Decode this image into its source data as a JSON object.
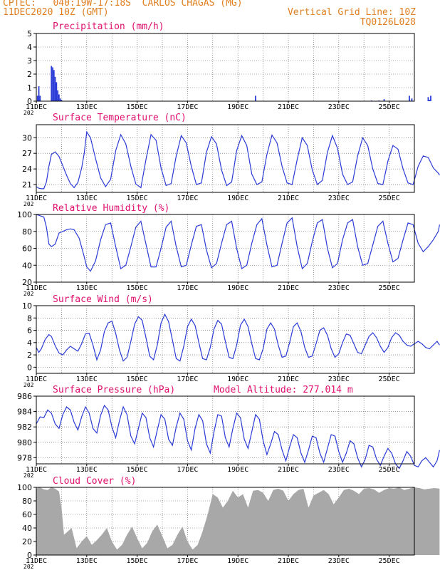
{
  "header": {
    "line1_left": "CPTEC:   040:19W-17:18S  CARLOS CHAGAS (MG)",
    "line2_left": "11DEC2020 10Z (GMT)",
    "line1_right": "Vertical Grid Line: 10Z",
    "line2_right": "TQ0126L028",
    "model_altitude": "Model Altitude: 277.014 m"
  },
  "colors": {
    "header_text": "#e07f1f",
    "panel_title": "#e0106e",
    "series_line": "#2b3bd6",
    "cloud_fill": "#a8a8a8",
    "grid": "#555555"
  },
  "x_axis": {
    "start": "11DEC",
    "end": "26DEC",
    "tick_labels": [
      "11DEC",
      "13DEC",
      "15DEC",
      "17DEC",
      "19DEC",
      "21DEC",
      "23DEC",
      "25DEC"
    ],
    "grid_every_day": true,
    "year_fragment": "202"
  },
  "chart_data": [
    {
      "type": "bar",
      "title": "Precipitation (mm/h)",
      "ylim": [
        0,
        5
      ],
      "yticks": [
        0,
        1,
        2,
        3,
        4,
        5
      ],
      "x_days": [
        0.05,
        0.1,
        0.15,
        0.6,
        0.65,
        0.7,
        0.75,
        0.8,
        0.85,
        0.9,
        0.95,
        1.0,
        8.7,
        13.3,
        13.6,
        13.8,
        14.8,
        14.9,
        15.55,
        15.6,
        15.65
      ],
      "values": [
        0.4,
        1.1,
        0.4,
        2.6,
        2.5,
        2.3,
        1.8,
        1.4,
        0.8,
        0.5,
        0.2,
        0.1,
        0.4,
        0.05,
        0.05,
        0.15,
        0.4,
        0.2,
        0.3,
        0.1,
        0.4
      ]
    },
    {
      "type": "line",
      "title": "Surface Temperature (nC)",
      "ylim": [
        19.5,
        32.5
      ],
      "yticks": [
        21,
        24,
        27,
        30
      ],
      "x_days": [
        0,
        0.1,
        0.2,
        0.3,
        0.4,
        0.5,
        0.6,
        0.75,
        0.9,
        1.05,
        1.2,
        1.35,
        1.5,
        1.65,
        1.8,
        1.9,
        2.0,
        2.15,
        2.35,
        2.55,
        2.75,
        2.95,
        3.15,
        3.35,
        3.55,
        3.75,
        3.95,
        4.15,
        4.35,
        4.55,
        4.75,
        4.95,
        5.15,
        5.35,
        5.55,
        5.75,
        5.95,
        6.15,
        6.35,
        6.55,
        6.75,
        6.95,
        7.15,
        7.35,
        7.55,
        7.75,
        7.95,
        8.15,
        8.35,
        8.55,
        8.75,
        8.95,
        9.15,
        9.35,
        9.55,
        9.75,
        9.95,
        10.15,
        10.35,
        10.55,
        10.75,
        10.95,
        11.15,
        11.35,
        11.55,
        11.75,
        11.95,
        12.15,
        12.35,
        12.55,
        12.75,
        12.95,
        13.15,
        13.35,
        13.55,
        13.75,
        13.95,
        14.15,
        14.35,
        14.55,
        14.75,
        14.95,
        15.15,
        15.35,
        15.55,
        15.75,
        15.95,
        16.0
      ],
      "values": [
        20.6,
        20.3,
        20.2,
        20.2,
        21.5,
        24.5,
        26.8,
        27.3,
        26.4,
        24.6,
        22.8,
        21.2,
        20.4,
        21.4,
        24.2,
        27.0,
        31.1,
        30.0,
        26.0,
        22.3,
        20.6,
        22.0,
        27.5,
        30.6,
        28.8,
        24.5,
        21.1,
        20.4,
        25.8,
        30.6,
        29.5,
        24.2,
        20.8,
        21.2,
        26.5,
        30.4,
        29.0,
        24.5,
        21.0,
        21.3,
        27.2,
        30.2,
        28.8,
        23.8,
        20.8,
        21.5,
        27.5,
        30.4,
        28.5,
        23.0,
        21.0,
        21.5,
        26.8,
        30.5,
        29.0,
        24.5,
        21.3,
        21.0,
        25.8,
        30.0,
        28.5,
        23.8,
        21.0,
        21.8,
        27.2,
        30.4,
        28.0,
        23.0,
        21.0,
        21.5,
        26.5,
        30.0,
        28.5,
        24.0,
        21.2,
        21.0,
        25.5,
        28.5,
        27.8,
        24.0,
        21.3,
        21.0,
        24.5,
        26.5,
        26.2,
        24.2,
        23.2,
        22.8
      ]
    },
    {
      "type": "line",
      "title": "Relative Humidity (%)",
      "ylim": [
        20,
        100
      ],
      "yticks": [
        20,
        40,
        60,
        80,
        100
      ],
      "x_days": [
        0,
        0.1,
        0.2,
        0.3,
        0.4,
        0.5,
        0.6,
        0.75,
        0.9,
        1.05,
        1.2,
        1.35,
        1.5,
        1.7,
        1.9,
        2.0,
        2.15,
        2.35,
        2.55,
        2.75,
        2.95,
        3.15,
        3.35,
        3.55,
        3.75,
        3.95,
        4.15,
        4.35,
        4.55,
        4.75,
        4.95,
        5.15,
        5.35,
        5.55,
        5.75,
        5.95,
        6.15,
        6.35,
        6.55,
        6.75,
        6.95,
        7.15,
        7.35,
        7.55,
        7.75,
        7.95,
        8.15,
        8.35,
        8.55,
        8.75,
        8.95,
        9.15,
        9.35,
        9.55,
        9.75,
        9.95,
        10.15,
        10.35,
        10.55,
        10.75,
        10.95,
        11.15,
        11.35,
        11.55,
        11.75,
        11.95,
        12.15,
        12.35,
        12.55,
        12.75,
        12.95,
        13.15,
        13.35,
        13.55,
        13.75,
        13.95,
        14.15,
        14.35,
        14.55,
        14.75,
        14.95,
        15.15,
        15.35,
        15.55,
        15.75,
        15.95,
        16.0
      ],
      "values": [
        100,
        99,
        98,
        97,
        85,
        65,
        62,
        65,
        78,
        80,
        82,
        83,
        82,
        72,
        50,
        38,
        33,
        45,
        70,
        88,
        90,
        62,
        36,
        40,
        62,
        85,
        92,
        65,
        38,
        38,
        60,
        85,
        92,
        62,
        38,
        40,
        64,
        86,
        88,
        58,
        37,
        42,
        66,
        88,
        92,
        60,
        36,
        40,
        66,
        88,
        95,
        64,
        38,
        40,
        66,
        90,
        96,
        62,
        36,
        42,
        68,
        90,
        94,
        60,
        37,
        42,
        70,
        90,
        94,
        62,
        40,
        42,
        64,
        86,
        92,
        66,
        44,
        48,
        70,
        90,
        88,
        66,
        56,
        62,
        70,
        80,
        88
      ]
    },
    {
      "type": "line",
      "title": "Surface Wind (m/s)",
      "ylim": [
        -1,
        10
      ],
      "yticks": [
        0,
        2,
        4,
        6,
        8,
        10
      ],
      "x_days": [
        0,
        0.1,
        0.2,
        0.35,
        0.5,
        0.6,
        0.75,
        0.9,
        1.05,
        1.2,
        1.35,
        1.5,
        1.65,
        1.8,
        1.95,
        2.1,
        2.25,
        2.4,
        2.55,
        2.7,
        2.85,
        3.0,
        3.15,
        3.3,
        3.45,
        3.6,
        3.75,
        3.9,
        4.05,
        4.2,
        4.35,
        4.5,
        4.65,
        4.8,
        4.95,
        5.1,
        5.25,
        5.4,
        5.55,
        5.7,
        5.85,
        6.0,
        6.15,
        6.3,
        6.45,
        6.6,
        6.75,
        6.9,
        7.05,
        7.2,
        7.35,
        7.5,
        7.65,
        7.8,
        7.95,
        8.1,
        8.25,
        8.4,
        8.55,
        8.7,
        8.85,
        9.0,
        9.15,
        9.3,
        9.45,
        9.6,
        9.75,
        9.9,
        10.05,
        10.2,
        10.35,
        10.5,
        10.65,
        10.8,
        10.95,
        11.1,
        11.25,
        11.4,
        11.55,
        11.7,
        11.85,
        12.0,
        12.15,
        12.3,
        12.45,
        12.6,
        12.75,
        12.9,
        13.05,
        13.2,
        13.35,
        13.5,
        13.65,
        13.8,
        13.95,
        14.1,
        14.25,
        14.4,
        14.55,
        14.7,
        14.85,
        15.0,
        15.15,
        15.3,
        15.45,
        15.6,
        15.75,
        15.9,
        16.0
      ],
      "values": [
        3.2,
        2.4,
        3.0,
        4.5,
        5.3,
        5.0,
        3.5,
        2.3,
        2.0,
        2.8,
        3.4,
        3.0,
        2.6,
        3.8,
        5.4,
        5.5,
        3.6,
        1.2,
        2.8,
        5.8,
        7.2,
        7.5,
        5.5,
        2.8,
        1.0,
        1.6,
        4.2,
        7.0,
        8.2,
        7.6,
        4.8,
        1.8,
        1.2,
        3.6,
        7.2,
        8.6,
        7.4,
        4.4,
        1.4,
        1.0,
        3.4,
        6.6,
        7.8,
        6.8,
        4.0,
        1.4,
        1.2,
        3.2,
        6.2,
        7.6,
        7.0,
        4.2,
        1.6,
        1.4,
        3.6,
        6.8,
        7.8,
        6.6,
        3.8,
        1.4,
        1.2,
        3.0,
        6.2,
        7.2,
        6.2,
        3.6,
        1.6,
        1.8,
        4.0,
        6.6,
        7.2,
        5.8,
        3.2,
        1.6,
        1.8,
        3.8,
        6.0,
        6.4,
        5.2,
        3.0,
        1.6,
        2.2,
        4.0,
        5.4,
        5.2,
        3.8,
        2.4,
        2.2,
        3.6,
        5.0,
        5.6,
        4.8,
        3.4,
        2.4,
        3.2,
        4.8,
        5.6,
        5.2,
        4.2,
        3.6,
        3.4,
        3.8,
        4.2,
        3.8,
        3.2,
        3.0,
        3.6,
        4.2,
        3.6
      ]
    },
    {
      "type": "line",
      "title": "Surface Pressure (hPa)",
      "ylim": [
        977.2,
        986
      ],
      "yticks": [
        978,
        980,
        982,
        984,
        986
      ],
      "x_days": [
        0,
        0.15,
        0.3,
        0.45,
        0.6,
        0.75,
        0.9,
        1.05,
        1.2,
        1.35,
        1.5,
        1.65,
        1.8,
        1.95,
        2.1,
        2.25,
        2.4,
        2.55,
        2.7,
        2.85,
        3.0,
        3.15,
        3.3,
        3.45,
        3.6,
        3.75,
        3.9,
        4.05,
        4.2,
        4.35,
        4.5,
        4.65,
        4.8,
        4.95,
        5.1,
        5.25,
        5.4,
        5.55,
        5.7,
        5.85,
        6.0,
        6.15,
        6.3,
        6.45,
        6.6,
        6.75,
        6.9,
        7.05,
        7.2,
        7.35,
        7.5,
        7.65,
        7.8,
        7.95,
        8.1,
        8.25,
        8.4,
        8.55,
        8.7,
        8.85,
        9.0,
        9.15,
        9.3,
        9.45,
        9.6,
        9.75,
        9.9,
        10.05,
        10.2,
        10.35,
        10.5,
        10.65,
        10.8,
        10.95,
        11.1,
        11.25,
        11.4,
        11.55,
        11.7,
        11.85,
        12.0,
        12.15,
        12.3,
        12.45,
        12.6,
        12.75,
        12.9,
        13.05,
        13.2,
        13.35,
        13.5,
        13.65,
        13.8,
        13.95,
        14.1,
        14.25,
        14.4,
        14.55,
        14.7,
        14.85,
        15.0,
        15.15,
        15.3,
        15.45,
        15.6,
        15.75,
        15.9,
        16.0
      ],
      "values": [
        982.4,
        983.3,
        983.2,
        984.2,
        983.8,
        982.4,
        981.8,
        983.6,
        984.6,
        984.2,
        982.6,
        981.6,
        983.3,
        984.6,
        983.8,
        981.8,
        981.2,
        983.5,
        984.8,
        984.2,
        982.0,
        980.6,
        982.8,
        984.6,
        983.6,
        980.8,
        979.8,
        981.8,
        983.8,
        983.2,
        980.6,
        979.4,
        981.6,
        983.6,
        983.0,
        980.4,
        979.6,
        982.0,
        983.8,
        983.0,
        980.2,
        979.0,
        981.8,
        983.6,
        982.8,
        979.8,
        978.6,
        981.4,
        983.6,
        983.4,
        980.6,
        979.4,
        981.8,
        983.8,
        983.2,
        980.4,
        979.2,
        981.4,
        983.6,
        983.0,
        980.2,
        978.4,
        979.8,
        981.4,
        981.0,
        979.0,
        977.6,
        979.4,
        981.0,
        980.6,
        978.6,
        977.4,
        979.0,
        980.8,
        980.6,
        978.6,
        977.4,
        979.2,
        981.0,
        980.8,
        978.8,
        977.4,
        978.6,
        980.2,
        979.8,
        978.0,
        976.8,
        977.8,
        979.6,
        979.4,
        977.8,
        977.0,
        978.2,
        979.2,
        978.6,
        977.2,
        976.6,
        977.6,
        978.8,
        978.2,
        977.0,
        976.8,
        977.6,
        978.0,
        977.4,
        976.8,
        977.6,
        979.0
      ]
    },
    {
      "type": "area",
      "title": "Cloud Cover (%)",
      "ylim": [
        0,
        100
      ],
      "yticks": [
        0,
        20,
        40,
        60,
        80,
        100
      ],
      "x_days": [
        0,
        0.1,
        0.2,
        0.3,
        0.45,
        0.6,
        0.75,
        0.9,
        1.0,
        1.1,
        1.25,
        1.4,
        1.5,
        1.6,
        1.8,
        2.0,
        2.2,
        2.4,
        2.6,
        2.8,
        3.0,
        3.2,
        3.4,
        3.6,
        3.8,
        4.0,
        4.2,
        4.4,
        4.6,
        4.8,
        5.0,
        5.2,
        5.4,
        5.6,
        5.8,
        6.0,
        6.2,
        6.4,
        6.6,
        6.8,
        7.0,
        7.2,
        7.4,
        7.6,
        7.8,
        8.0,
        8.2,
        8.4,
        8.6,
        8.8,
        9.0,
        9.2,
        9.4,
        9.6,
        9.8,
        10.0,
        10.2,
        10.4,
        10.6,
        10.8,
        11.0,
        11.2,
        11.4,
        11.6,
        11.8,
        12.0,
        12.2,
        12.4,
        12.6,
        12.8,
        13.0,
        13.2,
        13.4,
        13.6,
        13.8,
        14.0,
        14.2,
        14.4,
        14.6,
        14.8,
        15.0,
        15.2,
        15.4,
        15.6,
        15.8,
        16.0
      ],
      "values": [
        98,
        100,
        99,
        97,
        96,
        100,
        98,
        94,
        70,
        30,
        35,
        40,
        25,
        10,
        20,
        28,
        15,
        22,
        30,
        40,
        20,
        8,
        15,
        30,
        42,
        25,
        10,
        18,
        35,
        45,
        28,
        10,
        15,
        30,
        42,
        20,
        8,
        15,
        35,
        60,
        90,
        85,
        70,
        80,
        95,
        85,
        90,
        70,
        95,
        96,
        92,
        80,
        96,
        98,
        95,
        80,
        90,
        96,
        98,
        70,
        88,
        92,
        96,
        90,
        75,
        85,
        96,
        98,
        95,
        90,
        98,
        99,
        97,
        92,
        96,
        99,
        98,
        100,
        96,
        98,
        100,
        99,
        97,
        98,
        99,
        98
      ]
    }
  ]
}
